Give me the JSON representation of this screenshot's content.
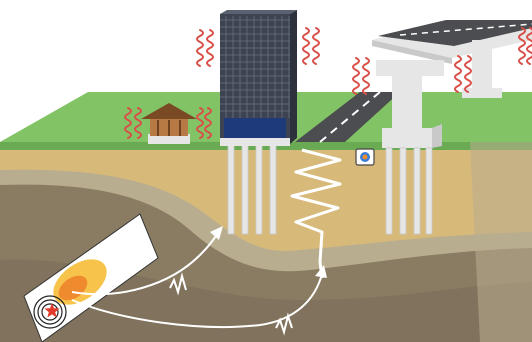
{
  "scene": {
    "kind": "earthquake-ground-motion-cross-section",
    "structures": [
      "wooden-house",
      "high-rise-building",
      "elevated-expressway"
    ],
    "features": [
      "fault-plane",
      "epicenter-star",
      "seismic-wave-arrows",
      "vibration-lines",
      "amplified-ground-zigzag",
      "observation-camera-icon",
      "road",
      "ground-strata"
    ]
  },
  "colors": {
    "sky": "#ffffff",
    "grass": "#82c366",
    "grass_side": "#6aaa52",
    "topsoil": "#d7b97a",
    "soft_layer": "#b9ad8f",
    "bedrock": "#8a7c63",
    "bedrock_dark": "#6d6150",
    "fault_plane": "#ffffff",
    "epicenter": "#e23a2a",
    "heat_outer": "#f7c34a",
    "heat_mid": "#f08a2e",
    "vibration": "#d9504a",
    "building_glass": "#3d4350",
    "building_grid": "#6a7180",
    "road": "#4c4d50",
    "road_line": "#ffffff",
    "concrete": "#e6e6e6",
    "concrete_shade": "#c9c9c9",
    "house_wall": "#b87a45",
    "house_roof": "#7a4a25",
    "wave_arrow": "#ffffff"
  }
}
